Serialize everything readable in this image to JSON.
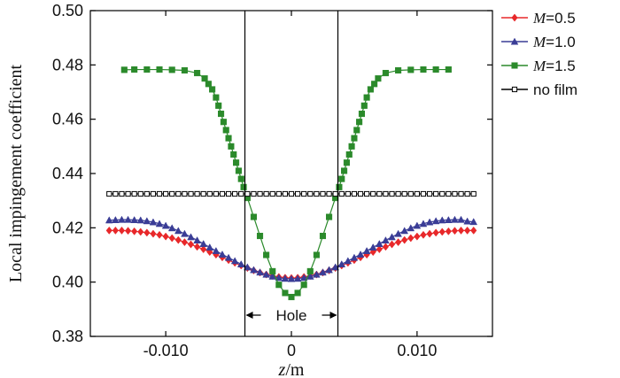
{
  "chart_data": {
    "type": "line",
    "title": "",
    "xlabel_var": "z",
    "xlabel_unit": "/m",
    "ylabel": "Local impingement coefficient",
    "xlim": [
      -0.016,
      0.016
    ],
    "ylim": [
      0.38,
      0.5
    ],
    "xticks": [
      -0.01,
      0,
      0.01
    ],
    "xtick_labels": [
      "-0.010",
      "0",
      "0.010"
    ],
    "yticks": [
      0.38,
      0.4,
      0.42,
      0.44,
      0.46,
      0.48,
      0.5
    ],
    "ytick_labels": [
      "0.38",
      "0.40",
      "0.42",
      "0.44",
      "0.46",
      "0.48",
      "0.50"
    ],
    "hole_edges": [
      -0.0037,
      0.0037
    ],
    "hole_label": "Hole",
    "legend_position": "right",
    "series": [
      {
        "name": "M=0.5",
        "legend_var": "M",
        "legend_value": "=0.5",
        "color": "#e8282a",
        "marker": "diamond",
        "x": [
          -0.0145,
          -0.014,
          -0.0135,
          -0.013,
          -0.0125,
          -0.012,
          -0.0115,
          -0.011,
          -0.0105,
          -0.01,
          -0.0095,
          -0.009,
          -0.0085,
          -0.008,
          -0.0075,
          -0.007,
          -0.0065,
          -0.006,
          -0.0055,
          -0.005,
          -0.0045,
          -0.004,
          -0.0035,
          -0.003,
          -0.0025,
          -0.002,
          -0.0015,
          -0.001,
          -0.0005,
          0,
          0.0005,
          0.001,
          0.0015,
          0.002,
          0.0025,
          0.003,
          0.0035,
          0.004,
          0.0045,
          0.005,
          0.0055,
          0.006,
          0.0065,
          0.007,
          0.0075,
          0.008,
          0.0085,
          0.009,
          0.0095,
          0.01,
          0.0105,
          0.011,
          0.0115,
          0.012,
          0.0125,
          0.013,
          0.0135,
          0.014,
          0.0145
        ],
        "y": [
          0.419,
          0.419,
          0.419,
          0.4189,
          0.4187,
          0.4185,
          0.4182,
          0.4178,
          0.4174,
          0.4168,
          0.4162,
          0.4155,
          0.4147,
          0.4139,
          0.413,
          0.4121,
          0.4111,
          0.4101,
          0.4091,
          0.4081,
          0.4071,
          0.4061,
          0.4052,
          0.4043,
          0.4035,
          0.4028,
          0.4023,
          0.4019,
          0.4016,
          0.4015,
          0.4016,
          0.4019,
          0.4023,
          0.4028,
          0.4035,
          0.4043,
          0.4052,
          0.4061,
          0.4071,
          0.4081,
          0.4091,
          0.4101,
          0.4111,
          0.4121,
          0.413,
          0.4139,
          0.4147,
          0.4155,
          0.4162,
          0.4168,
          0.4174,
          0.4178,
          0.4182,
          0.4185,
          0.4187,
          0.4189,
          0.419,
          0.419,
          0.419
        ]
      },
      {
        "name": "M=1.0",
        "legend_var": "M",
        "legend_value": "=1.0",
        "color": "#3a3d96",
        "marker": "triangle",
        "x": [
          -0.0145,
          -0.014,
          -0.0135,
          -0.013,
          -0.0125,
          -0.012,
          -0.0115,
          -0.011,
          -0.0105,
          -0.01,
          -0.0095,
          -0.009,
          -0.0085,
          -0.008,
          -0.0075,
          -0.007,
          -0.0065,
          -0.006,
          -0.0055,
          -0.005,
          -0.0045,
          -0.004,
          -0.0035,
          -0.003,
          -0.0025,
          -0.002,
          -0.0015,
          -0.001,
          -0.0005,
          0,
          0.0005,
          0.001,
          0.0015,
          0.002,
          0.0025,
          0.003,
          0.0035,
          0.004,
          0.0045,
          0.005,
          0.0055,
          0.006,
          0.0065,
          0.007,
          0.0075,
          0.008,
          0.0085,
          0.009,
          0.0095,
          0.01,
          0.0105,
          0.011,
          0.0115,
          0.012,
          0.0125,
          0.013,
          0.0135,
          0.014,
          0.0145
        ],
        "y": [
          0.4228,
          0.4229,
          0.423,
          0.423,
          0.4229,
          0.4228,
          0.4225,
          0.4221,
          0.4215,
          0.4208,
          0.4199,
          0.4189,
          0.4178,
          0.4166,
          0.4154,
          0.4141,
          0.4128,
          0.4115,
          0.4102,
          0.409,
          0.4078,
          0.4066,
          0.4055,
          0.4045,
          0.4036,
          0.4028,
          0.4021,
          0.4016,
          0.4013,
          0.4012,
          0.4013,
          0.4016,
          0.4021,
          0.4028,
          0.4036,
          0.4045,
          0.4055,
          0.4066,
          0.4078,
          0.409,
          0.4102,
          0.4115,
          0.4128,
          0.4141,
          0.4154,
          0.4166,
          0.4178,
          0.4189,
          0.4199,
          0.4208,
          0.4215,
          0.4221,
          0.4225,
          0.4228,
          0.4229,
          0.423,
          0.423,
          0.4224,
          0.4222
        ]
      },
      {
        "name": "M=1.5",
        "legend_var": "M",
        "legend_value": "=1.5",
        "color": "#2b8a2b",
        "marker": "square",
        "x": [
          -0.0133,
          -0.0125,
          -0.0115,
          -0.0105,
          -0.0095,
          -0.0085,
          -0.0075,
          -0.0069,
          -0.0066,
          -0.0063,
          -0.006,
          -0.0058,
          -0.0056,
          -0.0054,
          -0.0052,
          -0.005,
          -0.0048,
          -0.0046,
          -0.0044,
          -0.0042,
          -0.004,
          -0.0038,
          -0.0035,
          -0.003,
          -0.0025,
          -0.002,
          -0.0015,
          -0.001,
          -0.0005,
          0,
          0.0005,
          0.001,
          0.0015,
          0.002,
          0.0025,
          0.003,
          0.0035,
          0.0038,
          0.004,
          0.0042,
          0.0044,
          0.0046,
          0.0048,
          0.005,
          0.0052,
          0.0054,
          0.0056,
          0.0058,
          0.006,
          0.0063,
          0.0066,
          0.0069,
          0.0075,
          0.0085,
          0.0095,
          0.0105,
          0.0115,
          0.0125
        ],
        "y": [
          0.4782,
          0.4783,
          0.4783,
          0.4783,
          0.4782,
          0.478,
          0.477,
          0.475,
          0.473,
          0.471,
          0.468,
          0.465,
          0.462,
          0.459,
          0.456,
          0.453,
          0.45,
          0.447,
          0.444,
          0.441,
          0.438,
          0.435,
          0.431,
          0.424,
          0.417,
          0.41,
          0.404,
          0.399,
          0.396,
          0.3945,
          0.396,
          0.399,
          0.404,
          0.41,
          0.417,
          0.424,
          0.431,
          0.435,
          0.438,
          0.441,
          0.444,
          0.447,
          0.45,
          0.453,
          0.456,
          0.459,
          0.462,
          0.465,
          0.468,
          0.471,
          0.473,
          0.475,
          0.477,
          0.478,
          0.4782,
          0.4783,
          0.4783,
          0.4783
        ]
      },
      {
        "name": "no film",
        "legend_var": "",
        "legend_value": "no film",
        "color": "#000000",
        "marker": "open-square",
        "x": [
          -0.0145,
          -0.014,
          -0.0135,
          -0.013,
          -0.0125,
          -0.012,
          -0.0115,
          -0.011,
          -0.0105,
          -0.01,
          -0.0095,
          -0.009,
          -0.0085,
          -0.008,
          -0.0075,
          -0.007,
          -0.0065,
          -0.006,
          -0.0055,
          -0.005,
          -0.0045,
          -0.004,
          -0.0035,
          -0.003,
          -0.0025,
          -0.002,
          -0.0015,
          -0.001,
          -0.0005,
          0,
          0.0005,
          0.001,
          0.0015,
          0.002,
          0.0025,
          0.003,
          0.0035,
          0.004,
          0.0045,
          0.005,
          0.0055,
          0.006,
          0.0065,
          0.007,
          0.0075,
          0.008,
          0.0085,
          0.009,
          0.0095,
          0.01,
          0.0105,
          0.011,
          0.0115,
          0.012,
          0.0125,
          0.013,
          0.0135,
          0.014,
          0.0145
        ],
        "y": [
          0.4325,
          0.4325,
          0.4325,
          0.4325,
          0.4325,
          0.4325,
          0.4325,
          0.4325,
          0.4325,
          0.4325,
          0.4325,
          0.4325,
          0.4325,
          0.4325,
          0.4325,
          0.4325,
          0.4325,
          0.4325,
          0.4325,
          0.4325,
          0.4325,
          0.4325,
          0.4325,
          0.4325,
          0.4325,
          0.4325,
          0.4325,
          0.4325,
          0.4325,
          0.4325,
          0.4325,
          0.4325,
          0.4325,
          0.4325,
          0.4325,
          0.4325,
          0.4325,
          0.4325,
          0.4325,
          0.4325,
          0.4325,
          0.4325,
          0.4325,
          0.4325,
          0.4325,
          0.4325,
          0.4325,
          0.4325,
          0.4325,
          0.4325,
          0.4325,
          0.4325,
          0.4325,
          0.4325,
          0.4325,
          0.4325,
          0.4325,
          0.4325,
          0.4325
        ]
      }
    ]
  }
}
